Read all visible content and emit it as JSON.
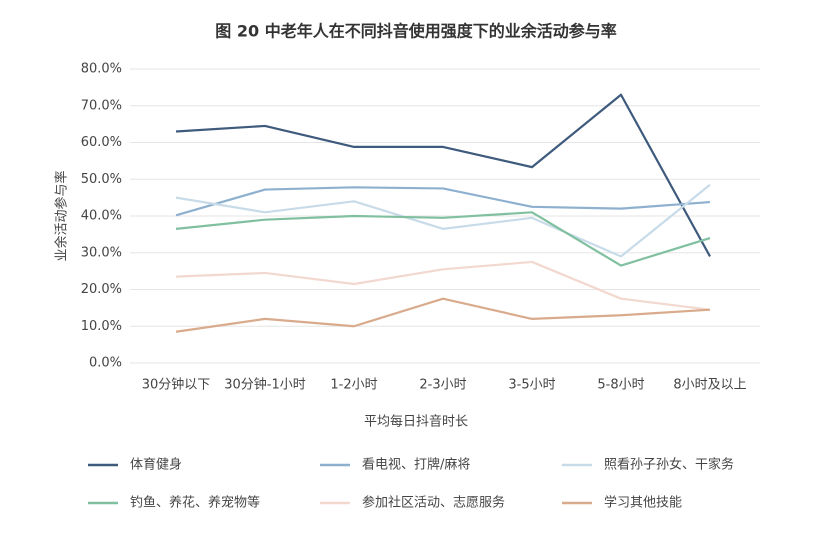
{
  "chart_data": {
    "type": "line",
    "title": "图 20  中老年人在不同抖音使用强度下的业余活动参与率",
    "x_label": "平均每日抖音时长",
    "y_label": "业余活动参与率",
    "categories": [
      "30分钟以下",
      "30分钟-1小时",
      "1-2小时",
      "2-3小时",
      "3-5小时",
      "5-8小时",
      "8小时及以上"
    ],
    "ylim": [
      0,
      80
    ],
    "yticks": [
      {
        "value": 0,
        "label": "0.0%"
      },
      {
        "value": 10,
        "label": "10.0%"
      },
      {
        "value": 20,
        "label": "20.0%"
      },
      {
        "value": 30,
        "label": "30.0%"
      },
      {
        "value": 40,
        "label": "40.0%"
      },
      {
        "value": 50,
        "label": "50.0%"
      },
      {
        "value": 60,
        "label": "60.0%"
      },
      {
        "value": 70,
        "label": "70.0%"
      },
      {
        "value": 80,
        "label": "80.0%"
      }
    ],
    "grid": true,
    "legend": "bottom",
    "series": [
      {
        "name": "体育健身",
        "color": "#3e5a7c",
        "values": [
          63,
          64.5,
          58.8,
          58.8,
          53.3,
          73,
          29
        ]
      },
      {
        "name": "看电视、打牌/麻将",
        "color": "#8eb0cf",
        "values": [
          40.2,
          47.2,
          47.8,
          47.5,
          42.5,
          42,
          43.8
        ]
      },
      {
        "name": "照看孙子孙女、干家务",
        "color": "#c8dbe8",
        "values": [
          45,
          41,
          44,
          36.5,
          39.5,
          29,
          48.5
        ]
      },
      {
        "name": "钓鱼、养花、养宠物等",
        "color": "#80c0a0",
        "values": [
          36.5,
          39,
          40,
          39.5,
          41,
          26.5,
          34
        ]
      },
      {
        "name": "参加社区活动、志愿服务",
        "color": "#f2d8cf",
        "values": [
          23.5,
          24.5,
          21.5,
          25.5,
          27.5,
          17.5,
          14.5
        ]
      },
      {
        "name": "学习其他技能",
        "color": "#d9aa8b",
        "values": [
          8.5,
          12,
          10,
          17.5,
          12,
          13,
          14.5
        ]
      }
    ]
  }
}
